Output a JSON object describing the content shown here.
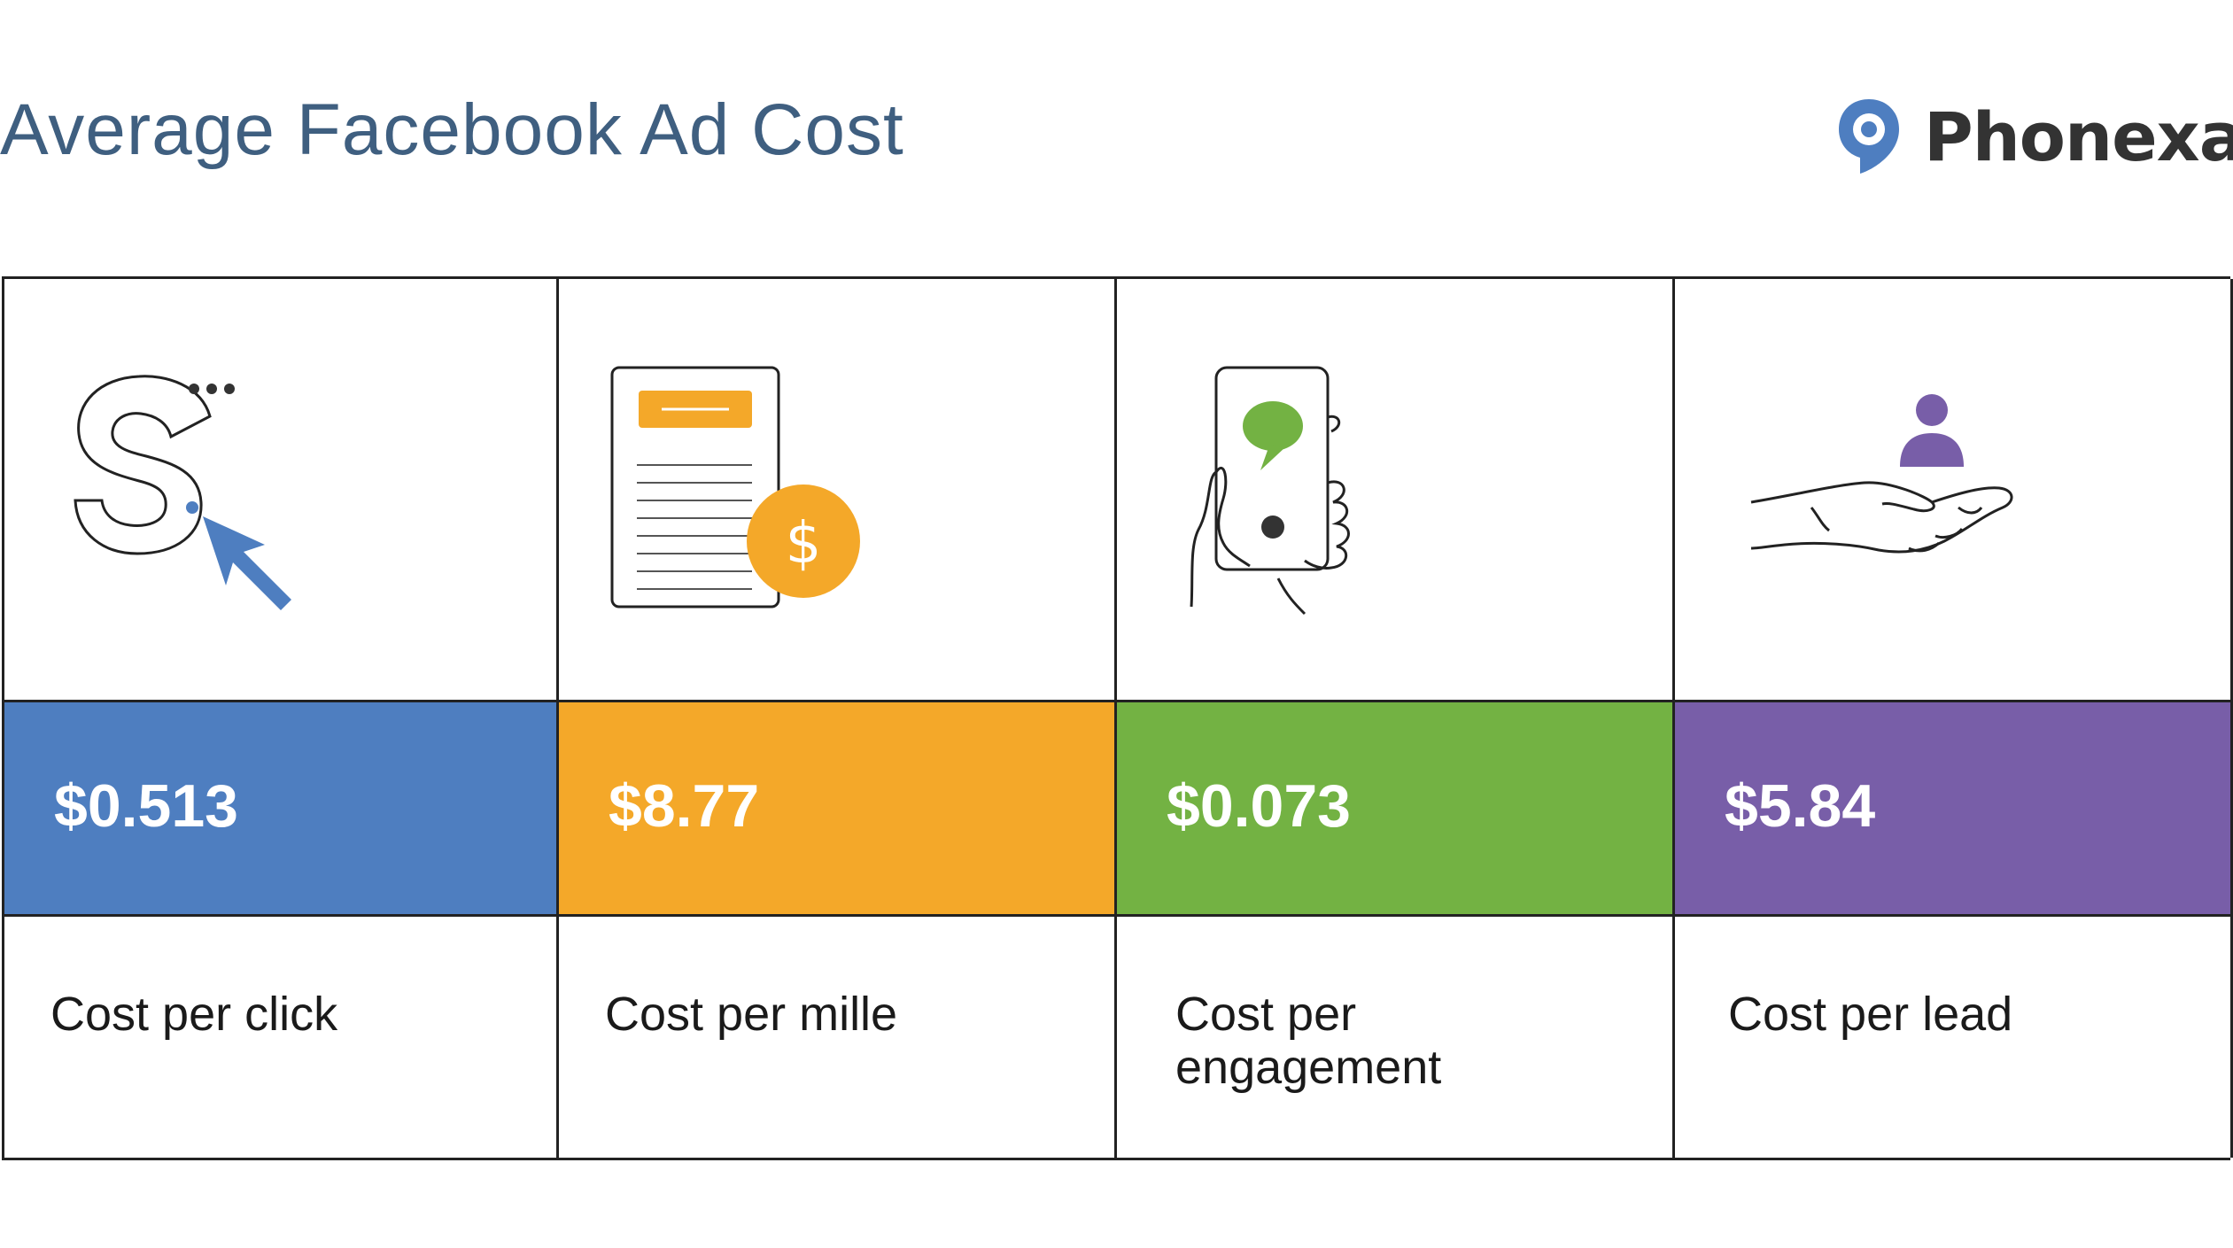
{
  "header": {
    "title": "Average Facebook Ad Cost",
    "brand": "Phonexa",
    "brand_mark": "®"
  },
  "metrics": [
    {
      "value": "$0.513",
      "label": "Cost per click",
      "color": "#4e7ec0",
      "icon": "click-cursor-icon"
    },
    {
      "value": "$8.77",
      "label": "Cost per mille",
      "color": "#f4a829",
      "icon": "document-dollar-icon"
    },
    {
      "value": "$0.073",
      "label": "Cost per engagement",
      "color": "#73b243",
      "icon": "phone-chat-icon"
    },
    {
      "value": "$5.84",
      "label": "Cost per lead",
      "color": "#785ea8",
      "icon": "hand-person-icon"
    }
  ]
}
